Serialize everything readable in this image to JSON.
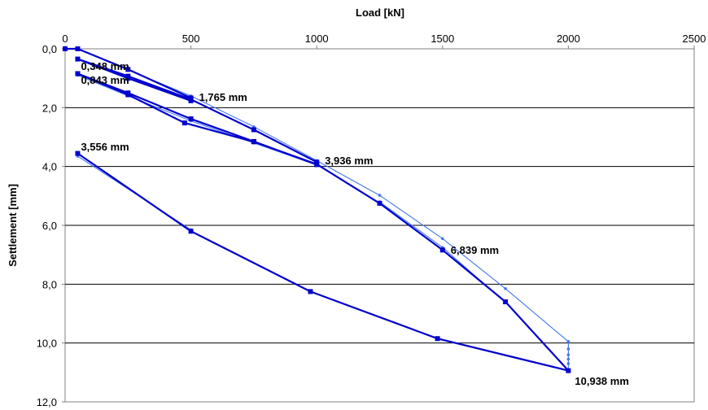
{
  "chart_data": {
    "type": "line",
    "title": "",
    "xlabel": "Load [kN]",
    "ylabel": "Settlement [mm]",
    "xlim": [
      0,
      2500
    ],
    "ylim": [
      0,
      12
    ],
    "y_inverted": true,
    "x_axis_position": "top",
    "grid": "horizontal",
    "legend": "none",
    "x_ticks": [
      "0",
      "500",
      "1000",
      "1500",
      "2000",
      "2500"
    ],
    "x_tick_values": [
      0,
      500,
      1000,
      1500,
      2000,
      2500
    ],
    "y_ticks": [
      "0,0",
      "2,0",
      "4,0",
      "6,0",
      "8,0",
      "10,0",
      "12,0"
    ],
    "y_tick_values": [
      0,
      2,
      4,
      6,
      8,
      10,
      12
    ],
    "series": [
      {
        "color": "#0000cc",
        "marker": "square",
        "points": [
          [
            0,
            0.0
          ],
          [
            50,
            0.0
          ],
          [
            250,
            0.7
          ],
          [
            500,
            1.67
          ],
          [
            500,
            1.765
          ],
          [
            250,
            1.0
          ],
          [
            50,
            0.348
          ],
          [
            250,
            0.93
          ],
          [
            500,
            1.72
          ],
          [
            750,
            2.75
          ],
          [
            1000,
            3.85
          ],
          [
            1000,
            3.936
          ],
          [
            750,
            3.15
          ],
          [
            500,
            2.38
          ],
          [
            250,
            1.5
          ],
          [
            50,
            0.843
          ],
          [
            250,
            1.56
          ],
          [
            475,
            2.52
          ],
          [
            750,
            3.16
          ],
          [
            1000,
            3.92
          ],
          [
            1250,
            5.25
          ],
          [
            1500,
            6.839
          ],
          [
            1750,
            8.6
          ],
          [
            2000,
            10.938
          ],
          [
            1480,
            9.85
          ],
          [
            975,
            8.25
          ],
          [
            500,
            6.2
          ],
          [
            50,
            3.556
          ]
        ]
      },
      {
        "color": "#4477ee",
        "marker": "dot",
        "points": [
          [
            0,
            0.0
          ],
          [
            50,
            0.0
          ],
          [
            250,
            0.72
          ],
          [
            500,
            1.6
          ],
          [
            750,
            2.65
          ],
          [
            1000,
            3.8
          ],
          [
            1250,
            4.98
          ],
          [
            1500,
            6.45
          ],
          [
            1750,
            8.15
          ],
          [
            2000,
            9.95
          ],
          [
            2000,
            10.2
          ],
          [
            2000,
            10.4
          ],
          [
            2000,
            10.55
          ],
          [
            2000,
            10.7
          ],
          [
            2000,
            10.938
          ]
        ]
      },
      {
        "color": "#4477ee",
        "marker": "dot",
        "points": [
          [
            1000,
            3.95
          ],
          [
            750,
            3.2
          ],
          [
            500,
            2.45
          ],
          [
            250,
            1.6
          ],
          [
            50,
            0.9
          ]
        ]
      },
      {
        "color": "#4477ee",
        "marker": "dot",
        "points": [
          [
            1750,
            8.62
          ],
          [
            1500,
            6.75
          ],
          [
            1250,
            5.2
          ]
        ]
      },
      {
        "color": "#4477ee",
        "marker": "dot",
        "points": [
          [
            500,
            6.15
          ],
          [
            50,
            3.65
          ]
        ]
      }
    ],
    "annotations": [
      {
        "text": "0,348 mm",
        "x": 50,
        "y": 0.348
      },
      {
        "text": "0,843 mm",
        "x": 50,
        "y": 0.843
      },
      {
        "text": "1,765 mm",
        "x": 500,
        "y": 1.765
      },
      {
        "text": "3,936 mm",
        "x": 1000,
        "y": 3.936
      },
      {
        "text": "3,556 mm",
        "x": 50,
        "y": 3.556
      },
      {
        "text": "6,839 mm",
        "x": 1500,
        "y": 6.839
      },
      {
        "text": "10,938 mm",
        "x": 2000,
        "y": 10.938
      }
    ]
  }
}
